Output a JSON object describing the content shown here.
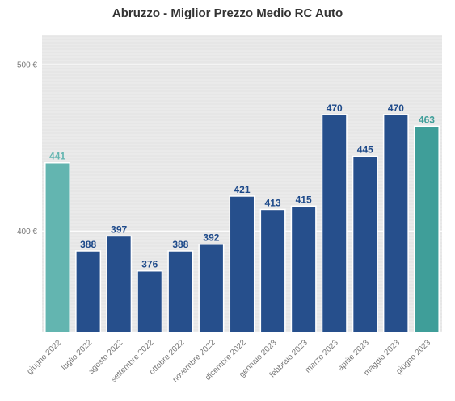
{
  "chart_data": {
    "type": "bar",
    "title": "Abruzzo - Miglior Prezzo Medio RC Auto",
    "categories": [
      "giugno 2022",
      "luglio 2022",
      "agosto 2022",
      "settembre 2022",
      "ottobre 2022",
      "novembre 2022",
      "dicembre 2022",
      "gennaio 2023",
      "febbraio 2023",
      "marzo 2023",
      "aprile 2023",
      "maggio 2023",
      "giugno 2023"
    ],
    "values": [
      441,
      388,
      397,
      376,
      388,
      392,
      421,
      413,
      415,
      470,
      445,
      470,
      463
    ],
    "bar_colors": [
      "#63b5b0",
      "#264f8c",
      "#264f8c",
      "#264f8c",
      "#264f8c",
      "#264f8c",
      "#264f8c",
      "#264f8c",
      "#264f8c",
      "#264f8c",
      "#264f8c",
      "#264f8c",
      "#3f9e99"
    ],
    "label_colors": [
      "#63b5b0",
      "#1e4a8a",
      "#1e4a8a",
      "#1e4a8a",
      "#1e4a8a",
      "#1e4a8a",
      "#1e4a8a",
      "#1e4a8a",
      "#1e4a8a",
      "#1e4a8a",
      "#1e4a8a",
      "#1e4a8a",
      "#3f9e99"
    ],
    "ylim": [
      339,
      518
    ],
    "yticks": [
      400,
      500
    ],
    "ytick_labels": [
      "400 €",
      "500 €"
    ],
    "xlabel": "",
    "ylabel": "",
    "grid": true,
    "background": "#eaeaea"
  }
}
